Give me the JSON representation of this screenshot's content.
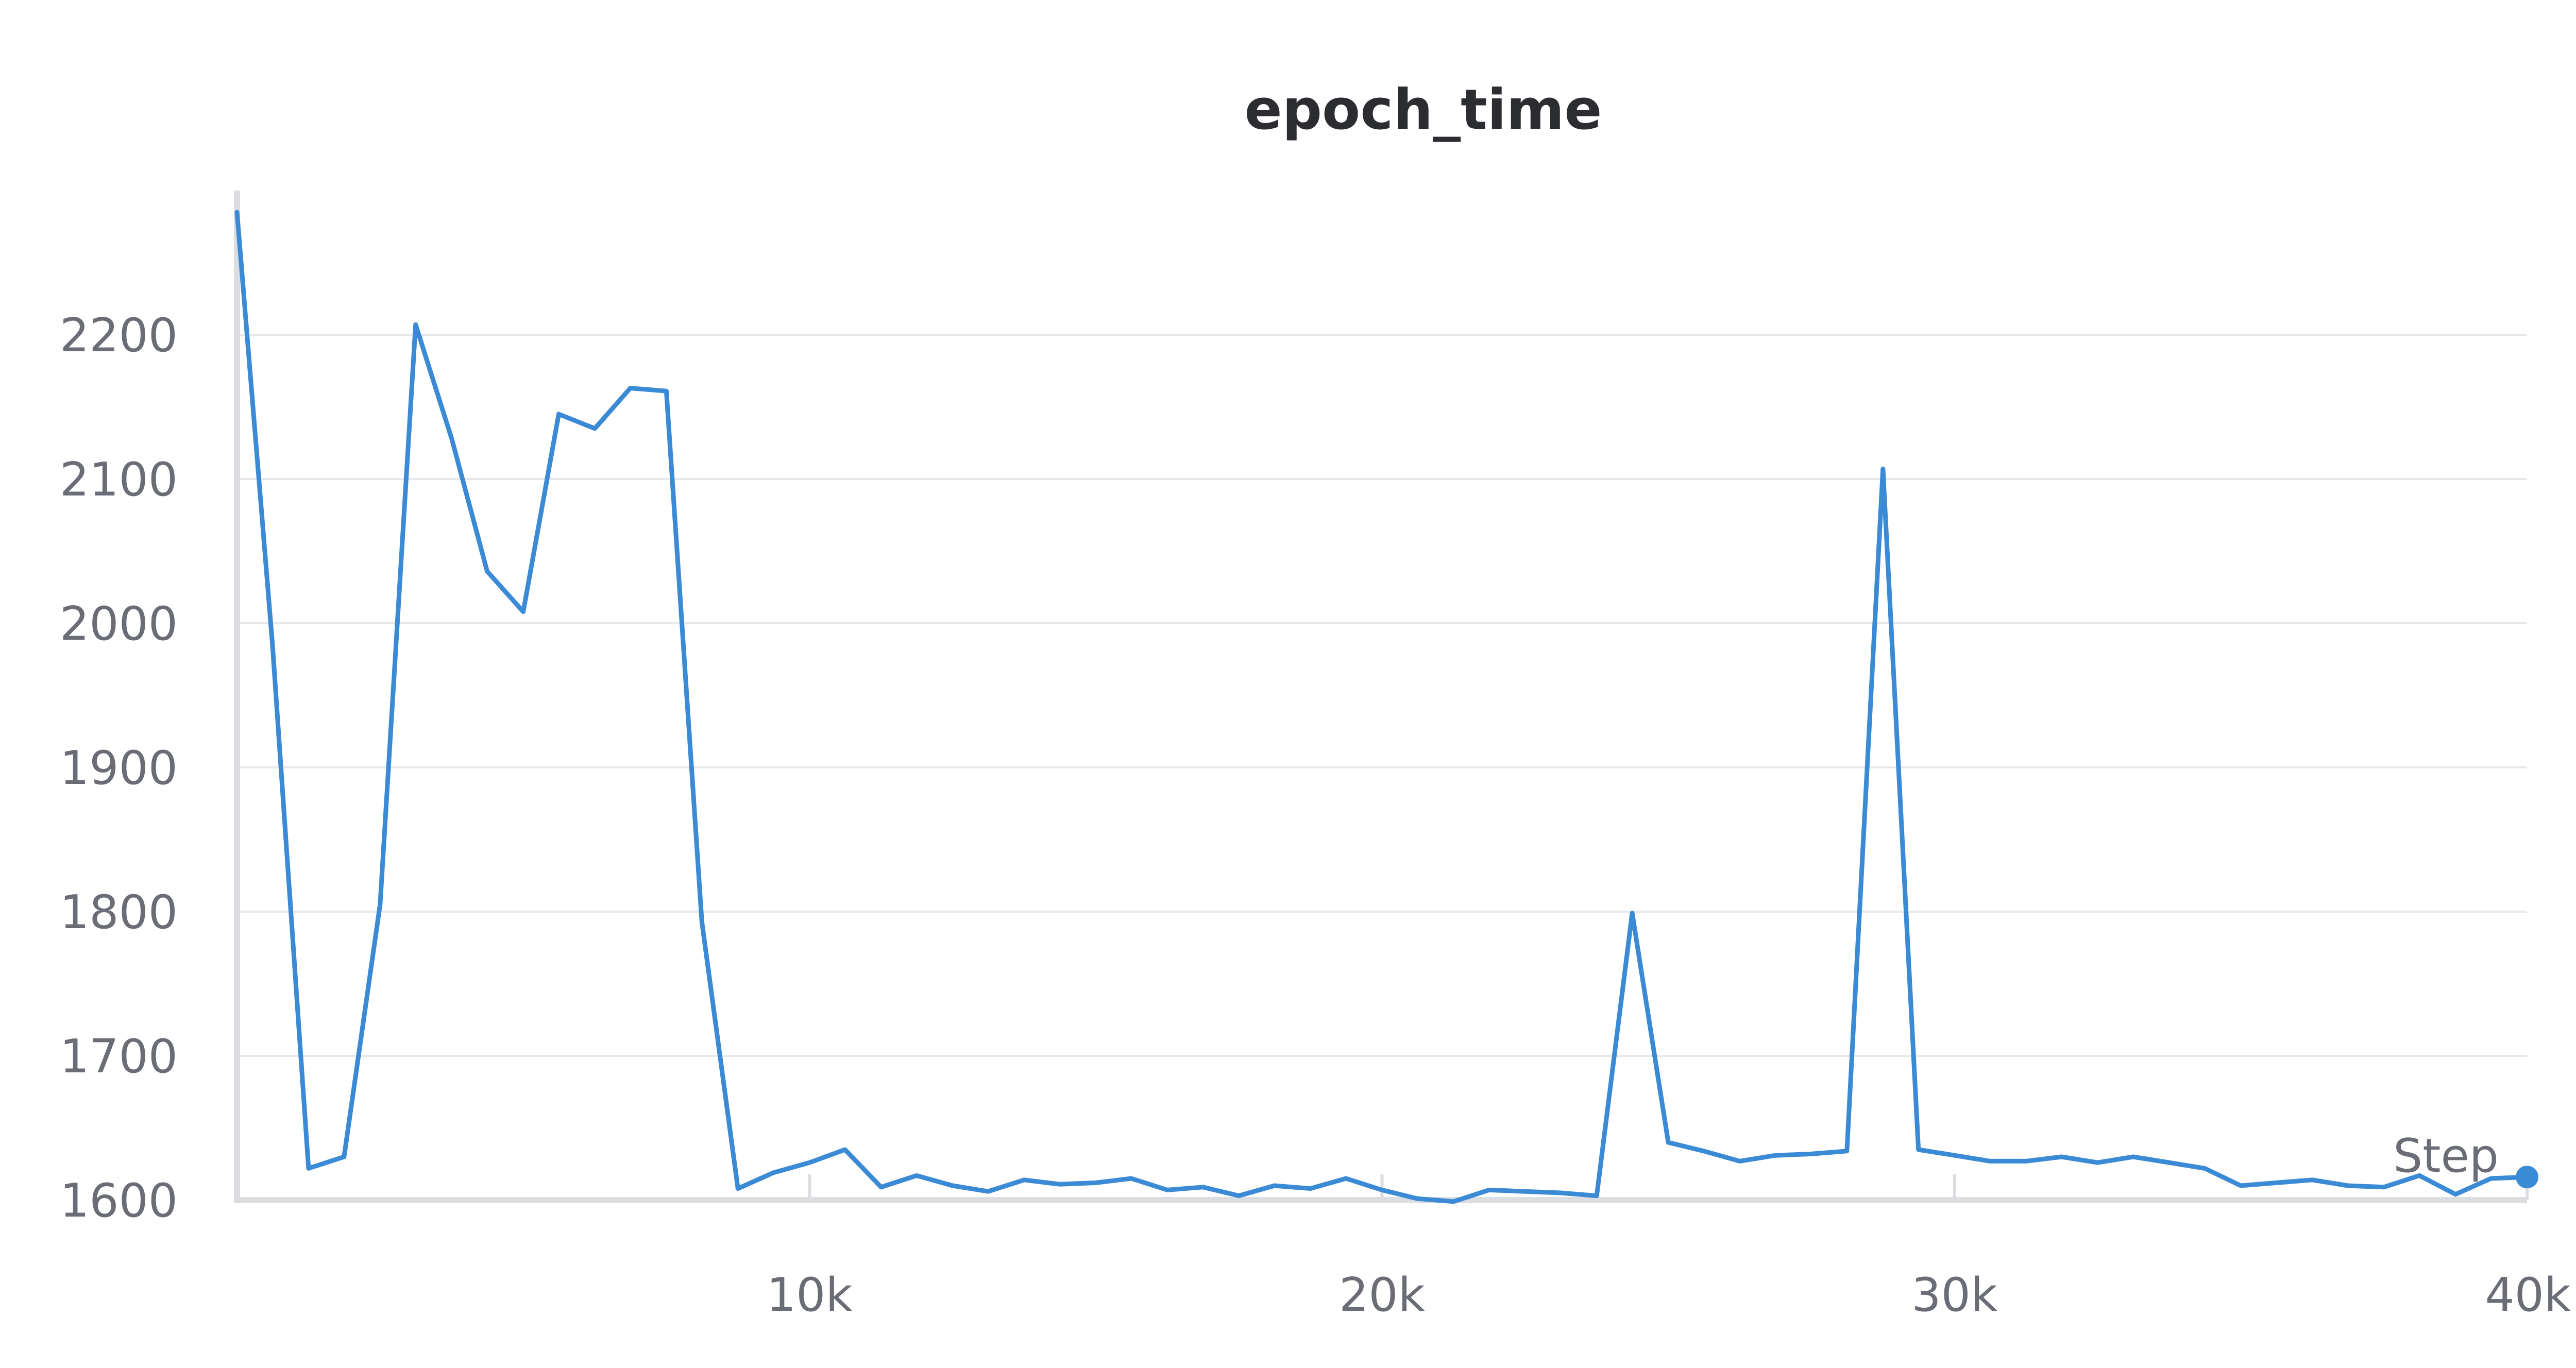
{
  "chart_data": {
    "type": "line",
    "title": "epoch_time",
    "xlabel": "Step",
    "ylabel": "",
    "xlim": [
      0,
      40000
    ],
    "ylim": [
      1600,
      2300
    ],
    "x_ticks": [
      10000,
      20000,
      30000,
      40000
    ],
    "x_tick_labels": [
      "10k",
      "20k",
      "30k",
      "40k"
    ],
    "y_ticks": [
      1600,
      1700,
      1800,
      1900,
      2000,
      2100,
      2200
    ],
    "y_tick_labels": [
      "1600",
      "1700",
      "1800",
      "1900",
      "2000",
      "2100",
      "2200"
    ],
    "grid": true,
    "series": [
      {
        "color": "#3a8ad6",
        "x": [
          0,
          620,
          1250,
          1870,
          2500,
          3120,
          3750,
          4370,
          5000,
          5620,
          6250,
          6870,
          7500,
          8120,
          8750,
          9370,
          10000,
          10620,
          11250,
          11870,
          12500,
          13120,
          13750,
          14370,
          15000,
          15620,
          16250,
          16870,
          17500,
          18120,
          18750,
          19370,
          20000,
          20620,
          21250,
          21870,
          22500,
          23120,
          23750,
          24370,
          25000,
          25620,
          26250,
          26870,
          27500,
          28120,
          28750,
          29370,
          30000,
          30620,
          31250,
          31870,
          32500,
          33120,
          33750,
          34370,
          35000,
          35620,
          36250,
          36870,
          37500,
          38120,
          38750,
          39370,
          40000
        ],
        "values": [
          2285,
          1985,
          1622,
          1630,
          1805,
          2207,
          2128,
          2036,
          2008,
          2145,
          2135,
          2163,
          2161,
          1793,
          1608,
          1619,
          1626,
          1635,
          1609,
          1617,
          1610,
          1606,
          1614,
          1611,
          1612,
          1615,
          1607,
          1609,
          1603,
          1610,
          1608,
          1615,
          1607,
          1601,
          1599,
          1607,
          1606,
          1605,
          1603,
          1799,
          1640,
          1634,
          1627,
          1631,
          1632,
          1634,
          2107,
          1635,
          1631,
          1627,
          1627,
          1630,
          1626,
          1630,
          1626,
          1622,
          1610,
          1612,
          1614,
          1610,
          1609,
          1617,
          1604,
          1615,
          1616
        ]
      }
    ]
  }
}
